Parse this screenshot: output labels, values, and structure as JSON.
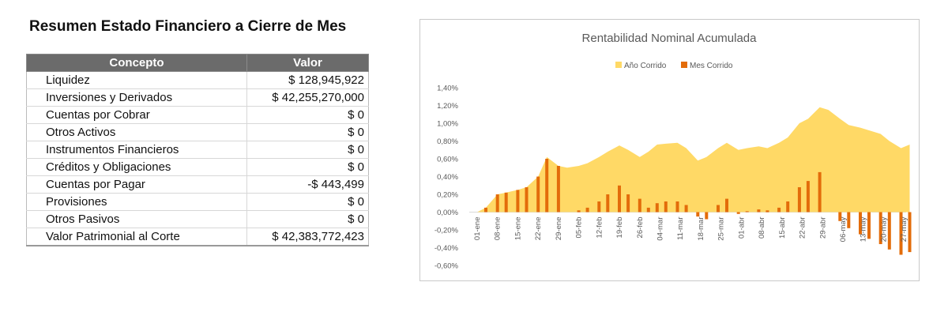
{
  "table": {
    "title": "Resumen Estado Financiero a Cierre de Mes",
    "headers": [
      "Concepto",
      "Valor"
    ],
    "rows": [
      {
        "concepto": "Liquidez",
        "valor": "$ 128,945,922"
      },
      {
        "concepto": "Inversiones y Derivados",
        "valor": "$ 42,255,270,000"
      },
      {
        "concepto": "Cuentas por Cobrar",
        "valor": "$ 0"
      },
      {
        "concepto": "Otros Activos",
        "valor": "$ 0"
      },
      {
        "concepto": "Instrumentos Financieros",
        "valor": "$ 0"
      },
      {
        "concepto": "Créditos y Obligaciones",
        "valor": "$ 0"
      },
      {
        "concepto": "Cuentas por Pagar",
        "valor": "-$ 443,499"
      },
      {
        "concepto": "Provisiones",
        "valor": "$ 0"
      },
      {
        "concepto": "Otros Pasivos",
        "valor": "$ 0"
      },
      {
        "concepto": "Valor Patrimonial al Corte",
        "valor": "$ 42,383,772,423"
      }
    ]
  },
  "chart_data": {
    "type": "area",
    "title": "Rentabilidad Nominal Acumulada",
    "legend_position": "top",
    "ylim": [
      -0.6,
      1.4
    ],
    "y_ticks": [
      "1,40%",
      "1,20%",
      "1,00%",
      "0,80%",
      "0,60%",
      "0,40%",
      "0,20%",
      "0,00%",
      "-0,20%",
      "-0,40%",
      "-0,60%"
    ],
    "x_ticks": [
      "01-ene",
      "08-ene",
      "15-ene",
      "22-ene",
      "29-ene",
      "05-feb",
      "12-feb",
      "19-feb",
      "26-feb",
      "04-mar",
      "11-mar",
      "18-mar",
      "25-mar",
      "01-abr",
      "08-abr",
      "15-abr",
      "22-abr",
      "29-abr",
      "06-may",
      "13-may",
      "20-may",
      "27-may"
    ],
    "series": [
      {
        "name": "Año Corrido",
        "color": "#FFD966",
        "mark": "area",
        "x": [
          "01-ene",
          "04-ene",
          "08-ene",
          "11-ene",
          "15-ene",
          "18-ene",
          "22-ene",
          "25-ene",
          "29-ene",
          "01-feb",
          "05-feb",
          "08-feb",
          "12-feb",
          "15-feb",
          "19-feb",
          "22-feb",
          "26-feb",
          "01-mar",
          "04-mar",
          "07-mar",
          "11-mar",
          "14-mar",
          "18-mar",
          "21-mar",
          "25-mar",
          "28-mar",
          "01-abr",
          "04-abr",
          "08-abr",
          "11-abr",
          "15-abr",
          "18-abr",
          "22-abr",
          "25-abr",
          "29-abr",
          "02-may",
          "06-may",
          "09-may",
          "13-may",
          "16-may",
          "20-may",
          "23-may",
          "27-may",
          "30-may"
        ],
        "values": [
          0.0,
          0.05,
          0.2,
          0.22,
          0.25,
          0.28,
          0.4,
          0.62,
          0.52,
          0.5,
          0.52,
          0.55,
          0.62,
          0.68,
          0.75,
          0.7,
          0.62,
          0.68,
          0.76,
          0.77,
          0.78,
          0.72,
          0.58,
          0.62,
          0.72,
          0.78,
          0.7,
          0.72,
          0.74,
          0.72,
          0.78,
          0.84,
          1.0,
          1.05,
          1.18,
          1.15,
          1.05,
          0.98,
          0.95,
          0.92,
          0.88,
          0.8,
          0.72,
          0.76
        ]
      },
      {
        "name": "Mes Corrido",
        "color": "#E36C0A",
        "mark": "bar",
        "x": [
          "01-ene",
          "04-ene",
          "08-ene",
          "11-ene",
          "15-ene",
          "18-ene",
          "22-ene",
          "25-ene",
          "29-ene",
          "01-feb",
          "05-feb",
          "08-feb",
          "12-feb",
          "15-feb",
          "19-feb",
          "22-feb",
          "26-feb",
          "01-mar",
          "04-mar",
          "07-mar",
          "11-mar",
          "14-mar",
          "18-mar",
          "21-mar",
          "25-mar",
          "28-mar",
          "01-abr",
          "04-abr",
          "08-abr",
          "11-abr",
          "15-abr",
          "18-abr",
          "22-abr",
          "25-abr",
          "29-abr",
          "02-may",
          "06-may",
          "09-may",
          "13-may",
          "16-may",
          "20-may",
          "23-may",
          "27-may",
          "30-may"
        ],
        "values": [
          0.0,
          0.05,
          0.2,
          0.22,
          0.25,
          0.28,
          0.4,
          0.6,
          0.52,
          0.0,
          0.02,
          0.05,
          0.12,
          0.2,
          0.3,
          0.2,
          0.15,
          0.05,
          0.1,
          0.12,
          0.12,
          0.08,
          -0.05,
          -0.08,
          0.08,
          0.15,
          -0.02,
          0.01,
          0.03,
          0.02,
          0.05,
          0.12,
          0.28,
          0.35,
          0.45,
          0.0,
          -0.1,
          -0.18,
          -0.25,
          -0.3,
          -0.36,
          -0.42,
          -0.48,
          -0.45
        ]
      }
    ]
  }
}
